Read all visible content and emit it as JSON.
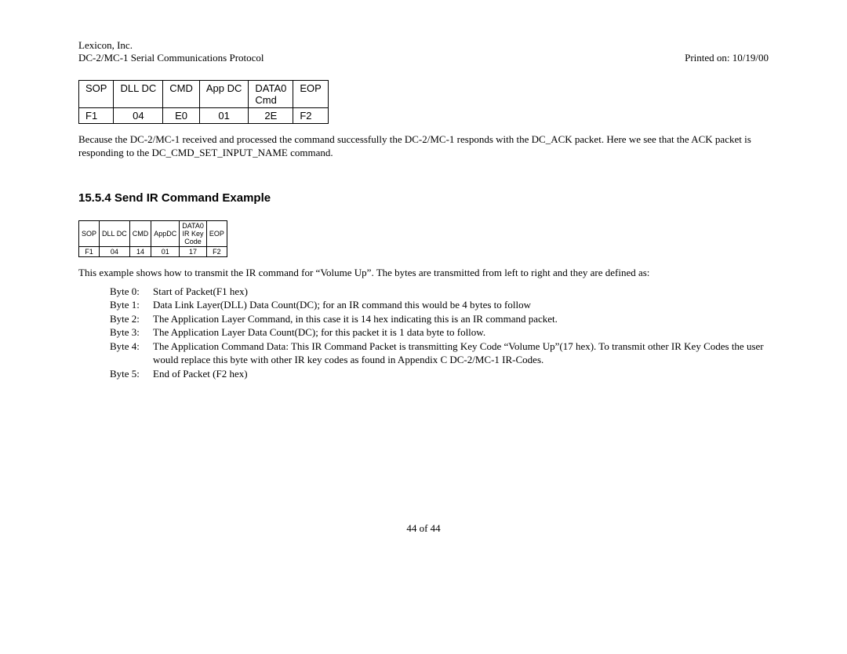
{
  "header": {
    "company": "Lexicon, Inc.",
    "doc": "DC-2/MC-1 Serial Communications Protocol",
    "printed": "Printed on: 10/19/00"
  },
  "table1": {
    "h": [
      "SOP",
      "DLL DC",
      "CMD",
      "App DC",
      "DATA0",
      "EOP"
    ],
    "sub4": "Cmd",
    "r": [
      "F1",
      "04",
      "E0",
      "01",
      "2E",
      "F2"
    ]
  },
  "para1": "Because the DC-2/MC-1 received and processed the command successfully the DC-2/MC-1 responds with the DC_ACK packet.  Here we see that the ACK packet is responding to the DC_CMD_SET_INPUT_NAME  command.",
  "section": "15.5.4  Send IR Command Example",
  "table2": {
    "h": [
      "SOP",
      "DLL DC",
      "CMD",
      "AppDC",
      "DATA0",
      "EOP"
    ],
    "sub4a": "IR Key",
    "sub4b": "Code",
    "r": [
      "F1",
      "04",
      "14",
      "01",
      "17",
      "F2"
    ]
  },
  "para2": "This example shows how to transmit the IR command for “Volume Up”.  The bytes are transmitted from left to right and they are defined as:",
  "bytes": [
    {
      "label": "Byte 0:",
      "desc": "Start of Packet(F1 hex)"
    },
    {
      "label": "Byte 1:",
      "desc": "Data  Link Layer(DLL) Data Count(DC); for an IR command this would be 4 bytes to follow"
    },
    {
      "label": "Byte 2:",
      "desc": "The Application Layer Command, in this case it is 14 hex indicating this is an IR command packet."
    },
    {
      "label": "Byte 3:",
      "desc": "The Application Layer Data Count(DC); for this packet it is 1 data byte to follow."
    },
    {
      "label": "Byte 4:",
      "desc": "The Application Command Data: This IR Command Packet is transmitting Key Code “Volume Up”(17 hex).  To transmit other IR Key Codes the user would replace this byte with other IR key codes as found in Appendix C DC-2/MC-1 IR-Codes."
    },
    {
      "label": "Byte 5:",
      "desc": "End of Packet (F2 hex)"
    }
  ],
  "footer": "44 of 44"
}
